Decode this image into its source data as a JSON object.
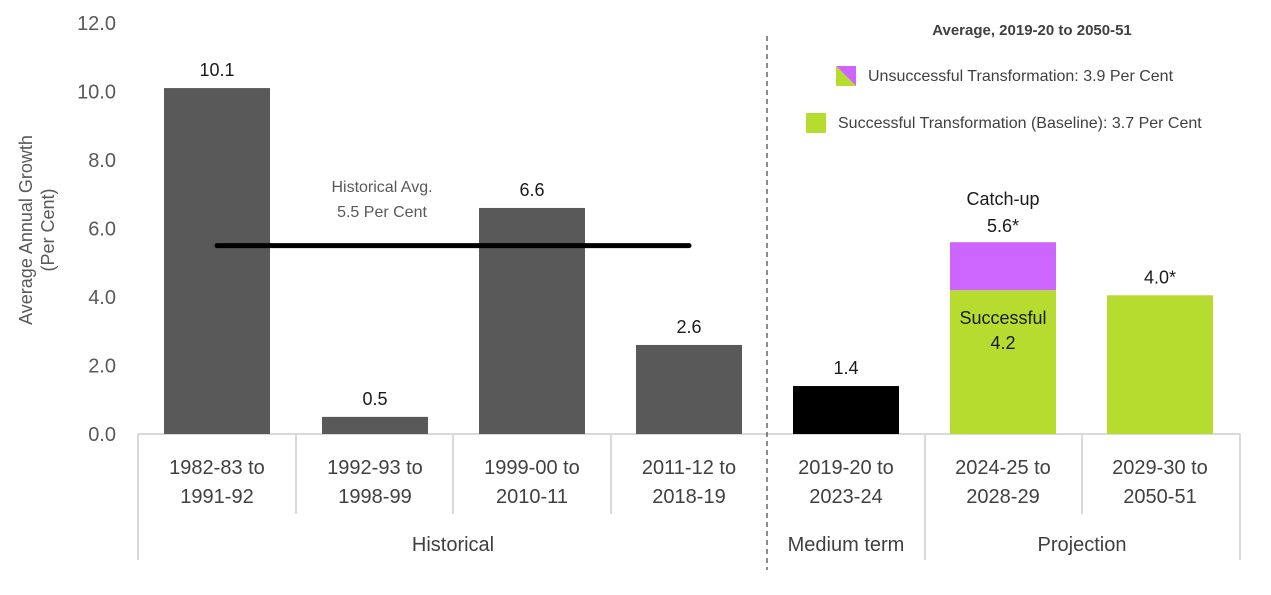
{
  "chart_data": {
    "type": "bar",
    "ylabel_line1": "Average Annual Growth",
    "ylabel_line2": "(Per Cent)",
    "ylim": [
      0,
      12
    ],
    "yticks": [
      "0.0",
      "2.0",
      "4.0",
      "6.0",
      "8.0",
      "10.0",
      "12.0"
    ],
    "categories": [
      {
        "line1": "1982-83 to",
        "line2": "1991-92"
      },
      {
        "line1": "1992-93 to",
        "line2": "1998-99"
      },
      {
        "line1": "1999-00 to",
        "line2": "2010-11"
      },
      {
        "line1": "2011-12 to",
        "line2": "2018-19"
      },
      {
        "line1": "2019-20 to",
        "line2": "2023-24"
      },
      {
        "line1": "2024-25 to",
        "line2": "2028-29"
      },
      {
        "line1": "2029-30 to",
        "line2": "2050-51"
      }
    ],
    "groups": [
      "Historical",
      "Medium term",
      "Projection"
    ],
    "bars": [
      {
        "value": 10.1,
        "label": "10.1",
        "color": "#595959"
      },
      {
        "value": 0.5,
        "label": "0.5",
        "color": "#595959"
      },
      {
        "value": 6.6,
        "label": "6.6",
        "color": "#595959"
      },
      {
        "value": 2.6,
        "label": "2.6",
        "color": "#595959"
      },
      {
        "value": 1.4,
        "label": "1.4",
        "color": "#000000"
      },
      {
        "value": 4.2,
        "label": "",
        "color": "#b5dc2f",
        "stack_top": 5.6,
        "stack_color": "#cc66ff",
        "stack_label": "5.6*",
        "stack_note": "Catch-up",
        "inner_line1": "Successful",
        "inner_line2": "4.2"
      },
      {
        "value": 4.05,
        "label": "4.0*",
        "color": "#b5dc2f"
      }
    ],
    "historical_average": {
      "value": 5.5,
      "line1": "Historical Avg.",
      "line2": "5.5 Per Cent"
    },
    "legend": {
      "title": "Average, 2019-20 to 2050-51",
      "placement": "top-right",
      "items": [
        {
          "label": "Unsuccessful Transformation: 3.9 Per Cent",
          "color": "#cc66ff",
          "split_color": "#b5dc2f"
        },
        {
          "label": "Successful Transformation (Baseline): 3.7 Per Cent",
          "color": "#b5dc2f"
        }
      ]
    },
    "axis_color": "#d9d9d9",
    "average_line_color": "#000000",
    "divider_color": "#404040"
  }
}
